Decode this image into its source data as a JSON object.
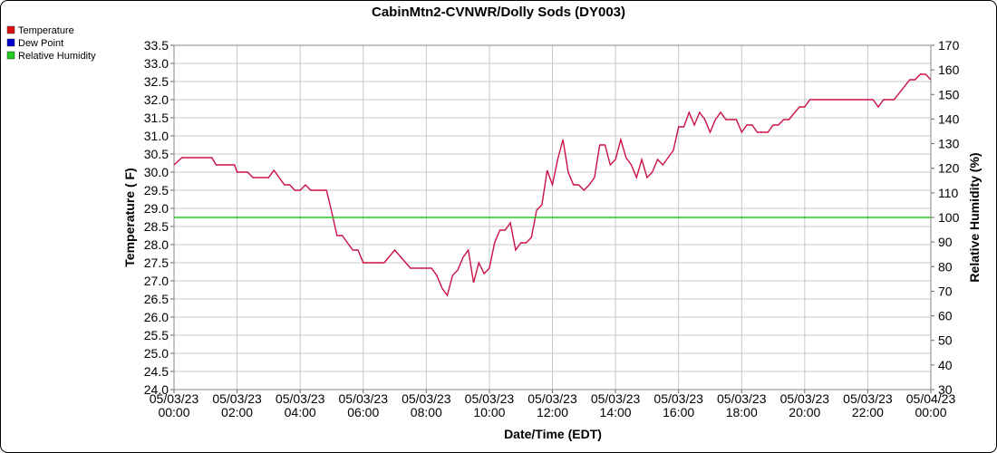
{
  "chart_data": {
    "type": "line",
    "title": "CabinMtn2-CVNWR/Dolly Sods (DY003)",
    "x_label": "Date/Time (EDT)",
    "y_label": "Temperature ( F)",
    "y2_label": "Relative Humidity (%)",
    "grid": true,
    "legend": "top-left",
    "xlim": [
      "05/03/23 00:00",
      "05/04/23 00:00"
    ],
    "xticks": [
      "05/03/23 00:00",
      "05/03/23 02:00",
      "05/03/23 04:00",
      "05/03/23 06:00",
      "05/03/23 08:00",
      "05/03/23 10:00",
      "05/03/23 12:00",
      "05/03/23 14:00",
      "05/03/23 16:00",
      "05/03/23 18:00",
      "05/03/23 20:00",
      "05/03/23 22:00",
      "05/04/23 00:00"
    ],
    "ylim": [
      24,
      33.5
    ],
    "yticks": [
      {
        "value": 24,
        "label": "24.0"
      },
      {
        "value": 24.5,
        "label": "24.5"
      },
      {
        "value": 25,
        "label": "25.0"
      },
      {
        "value": 25.5,
        "label": "25.5"
      },
      {
        "value": 26,
        "label": "26.0"
      },
      {
        "value": 26.5,
        "label": "26.5"
      },
      {
        "value": 27,
        "label": "27.0"
      },
      {
        "value": 27.5,
        "label": "27.5"
      },
      {
        "value": 28,
        "label": "28.0"
      },
      {
        "value": 28.5,
        "label": "28.5"
      },
      {
        "value": 29,
        "label": "29.0"
      },
      {
        "value": 29.5,
        "label": "29.5"
      },
      {
        "value": 30,
        "label": "30.0"
      },
      {
        "value": 30.5,
        "label": "30.5"
      },
      {
        "value": 31,
        "label": "31.0"
      },
      {
        "value": 31.5,
        "label": "31.5"
      },
      {
        "value": 32,
        "label": "32.0"
      },
      {
        "value": 32.5,
        "label": "32.5"
      },
      {
        "value": 33,
        "label": "33.0"
      },
      {
        "value": 33.5,
        "label": "33.5"
      }
    ],
    "y2lim": [
      30,
      170
    ],
    "y2ticks": [
      30,
      40,
      50,
      60,
      70,
      80,
      90,
      100,
      110,
      120,
      130,
      140,
      150,
      160,
      170
    ],
    "series": [
      {
        "name": "Temperature",
        "color": "#cc1144",
        "legend_color": "#dd1111",
        "x": [
          "05/03/23 00:00",
          "05/03/23 00:15",
          "05/03/23 01:12",
          "05/03/23 01:20",
          "05/03/23 01:55",
          "05/03/23 02:00",
          "05/03/23 02:20",
          "05/03/23 02:30",
          "05/03/23 03:00",
          "05/03/23 03:10",
          "05/03/23 03:30",
          "05/03/23 03:40",
          "05/03/23 03:50",
          "05/03/23 04:00",
          "05/03/23 04:10",
          "05/03/23 04:20",
          "05/03/23 04:50",
          "05/03/23 05:00",
          "05/03/23 05:10",
          "05/03/23 05:20",
          "05/03/23 05:40",
          "05/03/23 05:50",
          "05/03/23 06:00",
          "05/03/23 06:40",
          "05/03/23 07:00",
          "05/03/23 07:30",
          "05/03/23 08:10",
          "05/03/23 08:20",
          "05/03/23 08:30",
          "05/03/23 08:40",
          "05/03/23 08:50",
          "05/03/23 09:00",
          "05/03/23 09:10",
          "05/03/23 09:20",
          "05/03/23 09:30",
          "05/03/23 09:40",
          "05/03/23 09:50",
          "05/03/23 10:00",
          "05/03/23 10:10",
          "05/03/23 10:20",
          "05/03/23 10:30",
          "05/03/23 10:40",
          "05/03/23 10:50",
          "05/03/23 11:00",
          "05/03/23 11:10",
          "05/03/23 11:20",
          "05/03/23 11:30",
          "05/03/23 11:40",
          "05/03/23 11:50",
          "05/03/23 12:00",
          "05/03/23 12:10",
          "05/03/23 12:20",
          "05/03/23 12:30",
          "05/03/23 12:40",
          "05/03/23 12:50",
          "05/03/23 13:00",
          "05/03/23 13:10",
          "05/03/23 13:20",
          "05/03/23 13:30",
          "05/03/23 13:40",
          "05/03/23 13:50",
          "05/03/23 14:00",
          "05/03/23 14:10",
          "05/03/23 14:20",
          "05/03/23 14:30",
          "05/03/23 14:40",
          "05/03/23 14:50",
          "05/03/23 15:00",
          "05/03/23 15:10",
          "05/03/23 15:20",
          "05/03/23 15:30",
          "05/03/23 15:40",
          "05/03/23 15:50",
          "05/03/23 16:00",
          "05/03/23 16:10",
          "05/03/23 16:20",
          "05/03/23 16:30",
          "05/03/23 16:40",
          "05/03/23 16:50",
          "05/03/23 17:00",
          "05/03/23 17:10",
          "05/03/23 17:20",
          "05/03/23 17:30",
          "05/03/23 17:50",
          "05/03/23 18:00",
          "05/03/23 18:10",
          "05/03/23 18:20",
          "05/03/23 18:30",
          "05/03/23 18:50",
          "05/03/23 19:00",
          "05/03/23 19:10",
          "05/03/23 19:20",
          "05/03/23 19:30",
          "05/03/23 19:50",
          "05/03/23 20:00",
          "05/03/23 20:10",
          "05/03/23 22:10",
          "05/03/23 22:20",
          "05/03/23 22:30",
          "05/03/23 22:50",
          "05/03/23 23:20",
          "05/03/23 23:30",
          "05/03/23 23:40",
          "05/03/23 23:50",
          "05/04/23 00:00"
        ],
        "values": [
          30.2,
          30.4,
          30.4,
          30.2,
          30.2,
          30.0,
          30.0,
          29.85,
          29.85,
          30.05,
          29.65,
          29.65,
          29.5,
          29.5,
          29.65,
          29.5,
          29.5,
          28.9,
          28.25,
          28.25,
          27.85,
          27.85,
          27.5,
          27.5,
          27.85,
          27.35,
          27.35,
          27.15,
          26.8,
          26.6,
          27.15,
          27.3,
          27.65,
          27.85,
          26.95,
          27.5,
          27.2,
          27.35,
          28.05,
          28.4,
          28.4,
          28.6,
          27.85,
          28.05,
          28.05,
          28.2,
          28.95,
          29.1,
          30.05,
          29.65,
          30.35,
          30.9,
          30.0,
          29.65,
          29.65,
          29.5,
          29.65,
          29.85,
          30.75,
          30.75,
          30.2,
          30.35,
          30.9,
          30.4,
          30.2,
          29.85,
          30.35,
          29.85,
          30.0,
          30.35,
          30.2,
          30.4,
          30.6,
          31.25,
          31.25,
          31.65,
          31.3,
          31.65,
          31.45,
          31.1,
          31.45,
          31.65,
          31.45,
          31.45,
          31.1,
          31.3,
          31.3,
          31.1,
          31.1,
          31.3,
          31.3,
          31.45,
          31.45,
          31.8,
          31.8,
          32.0,
          32.0,
          31.8,
          32.0,
          32.0,
          32.55,
          32.55,
          32.7,
          32.7,
          32.55
        ]
      },
      {
        "name": "Dew Point",
        "color": "#0000cc"
      },
      {
        "name": "Relative Humidity",
        "color": "#22cc22",
        "axis": "y2",
        "x": [
          "05/03/23 00:00",
          "05/04/23 00:00"
        ],
        "values": [
          100,
          100
        ]
      }
    ]
  }
}
